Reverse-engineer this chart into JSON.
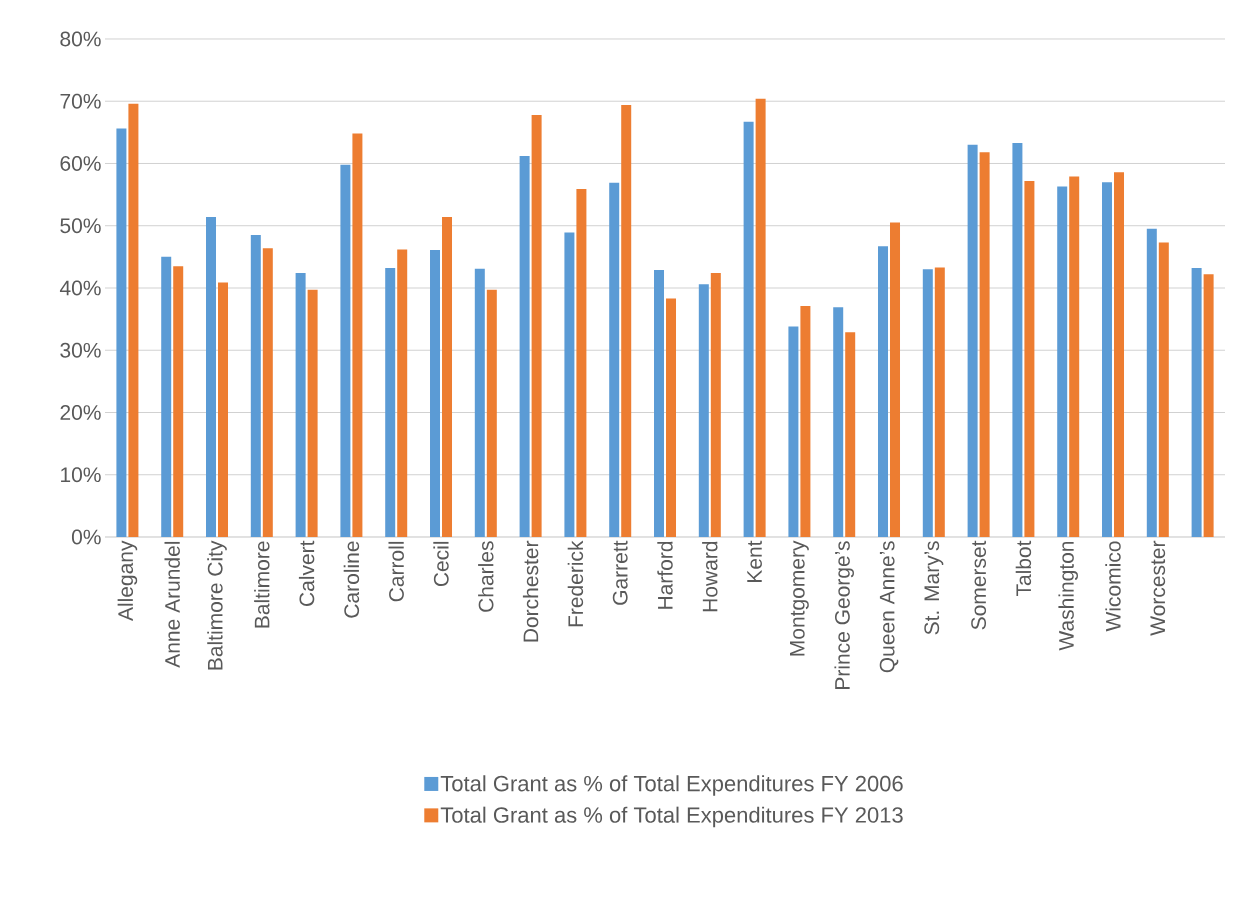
{
  "chart_data": {
    "type": "bar",
    "categories": [
      "Allegany",
      "Anne Arundel",
      "Baltimore City",
      "Baltimore",
      "Calvert",
      "Caroline",
      "Carroll",
      "Cecil",
      "Charles",
      "Dorchester",
      "Frederick",
      "Garrett",
      "Harford",
      "Howard",
      "Kent",
      "Montgomery",
      "Prince George’s",
      "Queen Anne’s",
      "St. Mary’s",
      "Somerset",
      "Talbot",
      "Washington",
      "Wicomico",
      "Worcester",
      null
    ],
    "series": [
      {
        "name": "Total Grant as % of Total Expenditures FY 2006",
        "color": "#5b9bd5",
        "values": [
          65.6,
          45.0,
          51.4,
          48.5,
          42.4,
          59.8,
          43.2,
          46.1,
          43.1,
          61.2,
          48.9,
          56.9,
          42.9,
          40.6,
          66.7,
          33.8,
          36.9,
          46.7,
          43.0,
          63.0,
          63.3,
          56.3,
          57.0,
          49.5,
          43.2
        ]
      },
      {
        "name": "Total Grant as % of Total Expenditures FY 2013",
        "color": "#ed7d31",
        "values": [
          69.6,
          43.5,
          40.9,
          46.4,
          39.7,
          64.8,
          46.2,
          51.4,
          39.7,
          67.8,
          55.9,
          69.4,
          38.3,
          42.4,
          70.4,
          37.1,
          32.9,
          50.5,
          43.3,
          61.8,
          57.2,
          57.9,
          58.6,
          47.3,
          42.2
        ]
      }
    ],
    "ylim": [
      0,
      80
    ],
    "yticks": [
      {
        "value": 0,
        "label": "0%"
      },
      {
        "value": 10,
        "label": "10%"
      },
      {
        "value": 20,
        "label": "20%"
      },
      {
        "value": 30,
        "label": "30%"
      },
      {
        "value": 40,
        "label": "40%"
      },
      {
        "value": 50,
        "label": "50%"
      },
      {
        "value": 60,
        "label": "60%"
      },
      {
        "value": 70,
        "label": "70%"
      },
      {
        "value": 80,
        "label": "80%"
      }
    ],
    "grid": "y",
    "legend": "bottom"
  }
}
